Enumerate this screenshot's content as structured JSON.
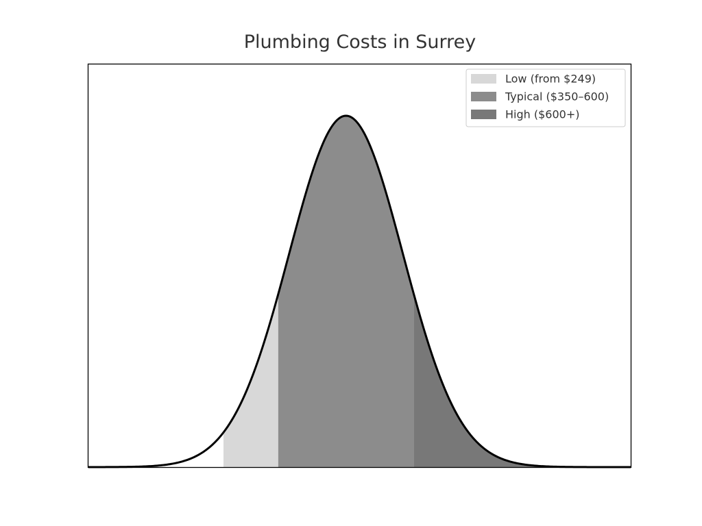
{
  "chart_data": {
    "type": "area",
    "title": "Plumbing Costs in Surrey",
    "xlabel": "",
    "ylabel": "",
    "grid": false,
    "legend_position": "top-right",
    "axes_ticks_shown": false,
    "x_range": [
      0,
      1000
    ],
    "distribution": {
      "kind": "normal",
      "mean": 475,
      "sd": 105
    },
    "curve_color": "#000000",
    "bands": [
      {
        "name": "Low (from $249)",
        "from": 249,
        "to": 350,
        "color": "#d8d8d8"
      },
      {
        "name": "Typical ($350–600)",
        "from": 350,
        "to": 600,
        "color": "#8c8c8c"
      },
      {
        "name": "High ($600+)",
        "from": 600,
        "to": 1000,
        "color": "#787878"
      }
    ]
  }
}
